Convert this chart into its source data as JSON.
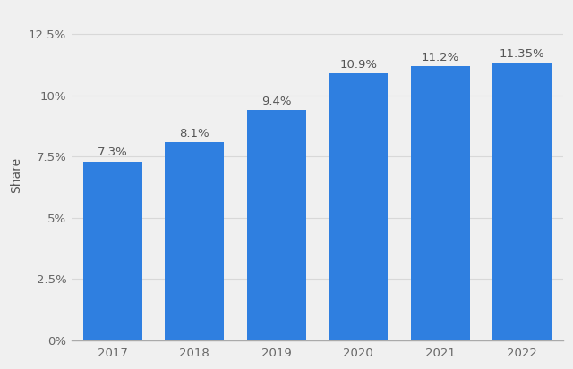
{
  "categories": [
    "2017",
    "2018",
    "2019",
    "2020",
    "2021",
    "2022"
  ],
  "values": [
    7.3,
    8.1,
    9.4,
    10.9,
    11.2,
    11.35
  ],
  "labels": [
    "7.3%",
    "8.1%",
    "9.4%",
    "10.9%",
    "11.2%",
    "11.35%"
  ],
  "bar_color": "#2f7fe0",
  "background_color": "#f0f0f0",
  "plot_background_color": "#f0f0f0",
  "ylabel": "Share",
  "ylim": [
    0,
    13.5
  ],
  "yticks": [
    0,
    2.5,
    5.0,
    7.5,
    10.0,
    12.5
  ],
  "ytick_labels": [
    "0%",
    "2.5%",
    "5%",
    "7.5%",
    "10%",
    "12.5%"
  ],
  "grid_color": "#d8d8d8",
  "label_color": "#555555",
  "label_fontsize": 9.5,
  "tick_fontsize": 9.5,
  "ylabel_fontsize": 10
}
